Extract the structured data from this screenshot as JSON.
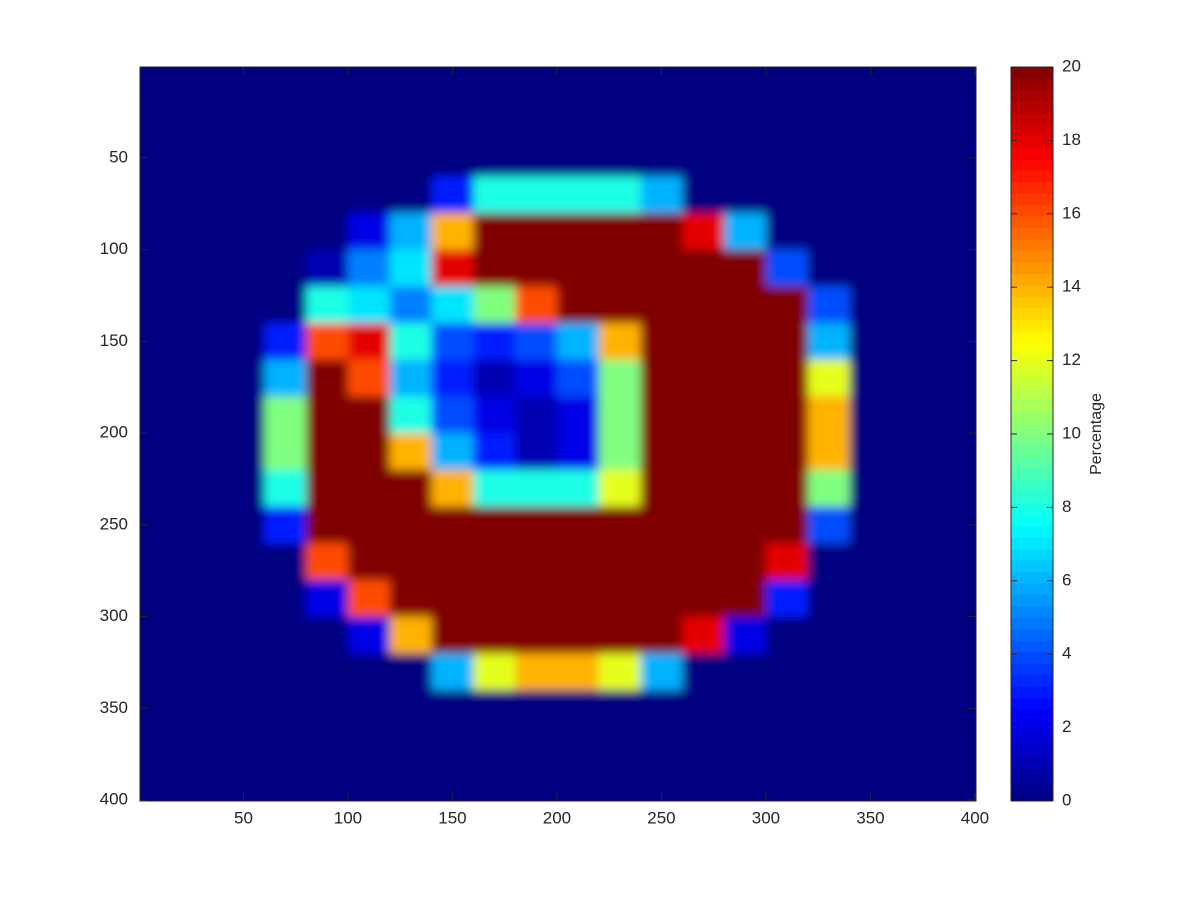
{
  "chart_data": {
    "type": "heatmap",
    "colormap": "jet",
    "x": [
      10,
      30,
      50,
      70,
      90,
      110,
      130,
      150,
      170,
      190,
      210,
      230,
      250,
      270,
      290,
      310,
      330,
      350,
      370,
      390
    ],
    "y": [
      10,
      30,
      50,
      70,
      90,
      110,
      130,
      150,
      170,
      190,
      210,
      230,
      250,
      270,
      290,
      310,
      330,
      350,
      370,
      390
    ],
    "z": [
      [
        0,
        0,
        0,
        0,
        0,
        0,
        0,
        0,
        0,
        0,
        0,
        0,
        0,
        0,
        0,
        0,
        0,
        0,
        0,
        0
      ],
      [
        0,
        0,
        0,
        0,
        0,
        0,
        0,
        0,
        0,
        0,
        0,
        0,
        0,
        0,
        0,
        0,
        0,
        0,
        0,
        0
      ],
      [
        0,
        0,
        0,
        0,
        0,
        0,
        0,
        0,
        0,
        0,
        0,
        0,
        0,
        0,
        0,
        0,
        0,
        0,
        0,
        0
      ],
      [
        0,
        0,
        0,
        0,
        0,
        0,
        0,
        3,
        8,
        8,
        8,
        8,
        6,
        0,
        0,
        0,
        0,
        0,
        0,
        0
      ],
      [
        0,
        0,
        0,
        0,
        0,
        2,
        6,
        14,
        20,
        20,
        20,
        20,
        20,
        18,
        6,
        0,
        0,
        0,
        0,
        0
      ],
      [
        0,
        0,
        0,
        0,
        1,
        5,
        7,
        18,
        20,
        20,
        20,
        20,
        20,
        20,
        20,
        4,
        0,
        0,
        0,
        0
      ],
      [
        0,
        0,
        0,
        0,
        8,
        7,
        5,
        7,
        10,
        16,
        20,
        20,
        20,
        20,
        20,
        20,
        4,
        0,
        0,
        0
      ],
      [
        0,
        0,
        0,
        3,
        16,
        18,
        8,
        4,
        3,
        4,
        6,
        14,
        20,
        20,
        20,
        20,
        6,
        0,
        0,
        0
      ],
      [
        0,
        0,
        0,
        6,
        20,
        16,
        6,
        3,
        1,
        2,
        4,
        10,
        20,
        20,
        20,
        20,
        12,
        0,
        0,
        0
      ],
      [
        0,
        0,
        0,
        10,
        20,
        20,
        8,
        4,
        2,
        1,
        2,
        10,
        20,
        20,
        20,
        20,
        14,
        0,
        0,
        0
      ],
      [
        0,
        0,
        0,
        10,
        20,
        20,
        14,
        6,
        3,
        1,
        2,
        10,
        20,
        20,
        20,
        20,
        14,
        0,
        0,
        0
      ],
      [
        0,
        0,
        0,
        8,
        20,
        20,
        20,
        14,
        8,
        8,
        8,
        12,
        20,
        20,
        20,
        20,
        10,
        0,
        0,
        0
      ],
      [
        0,
        0,
        0,
        3,
        20,
        20,
        20,
        20,
        20,
        20,
        20,
        20,
        20,
        20,
        20,
        20,
        4,
        0,
        0,
        0
      ],
      [
        0,
        0,
        0,
        0,
        16,
        20,
        20,
        20,
        20,
        20,
        20,
        20,
        20,
        20,
        20,
        18,
        0,
        0,
        0,
        0
      ],
      [
        0,
        0,
        0,
        0,
        2,
        16,
        20,
        20,
        20,
        20,
        20,
        20,
        20,
        20,
        20,
        3,
        0,
        0,
        0,
        0
      ],
      [
        0,
        0,
        0,
        0,
        0,
        2,
        14,
        20,
        20,
        20,
        20,
        20,
        20,
        18,
        2,
        0,
        0,
        0,
        0,
        0
      ],
      [
        0,
        0,
        0,
        0,
        0,
        0,
        0,
        6,
        12,
        14,
        14,
        12,
        6,
        0,
        0,
        0,
        0,
        0,
        0,
        0
      ],
      [
        0,
        0,
        0,
        0,
        0,
        0,
        0,
        0,
        0,
        0,
        0,
        0,
        0,
        0,
        0,
        0,
        0,
        0,
        0,
        0
      ],
      [
        0,
        0,
        0,
        0,
        0,
        0,
        0,
        0,
        0,
        0,
        0,
        0,
        0,
        0,
        0,
        0,
        0,
        0,
        0,
        0
      ],
      [
        0,
        0,
        0,
        0,
        0,
        0,
        0,
        0,
        0,
        0,
        0,
        0,
        0,
        0,
        0,
        0,
        0,
        0,
        0,
        0
      ]
    ],
    "xlim": [
      0.5,
      400.5
    ],
    "ylim": [
      0.5,
      400.5
    ],
    "y_reversed": true,
    "xticks": [
      50,
      100,
      150,
      200,
      250,
      300,
      350,
      400
    ],
    "yticks": [
      50,
      100,
      150,
      200,
      250,
      300,
      350,
      400
    ],
    "clim": [
      0,
      20
    ],
    "colorbar": {
      "label": "Percentage",
      "ticks": [
        0,
        2,
        4,
        6,
        8,
        10,
        12,
        14,
        16,
        18,
        20
      ]
    }
  }
}
